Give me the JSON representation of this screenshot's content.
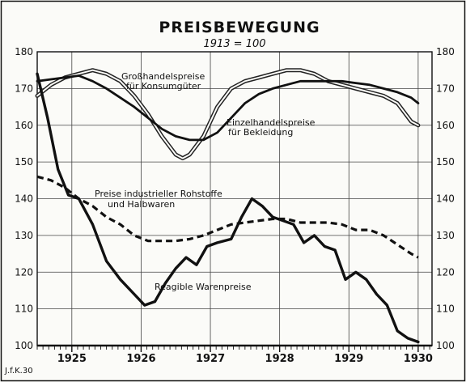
{
  "chart_data": {
    "type": "line",
    "title": "PREISBEWEGUNG",
    "subtitle": "1913 = 100",
    "credit": "J.f.K.30",
    "x_ticks": [
      "1925",
      "1926",
      "1927",
      "1928",
      "1929",
      "1930"
    ],
    "y_ticks": [
      100,
      110,
      120,
      130,
      140,
      150,
      160,
      170,
      180
    ],
    "xlim": [
      1924.5,
      1930.2
    ],
    "ylim": [
      100,
      180
    ],
    "grid": true,
    "legend": "none",
    "series": [
      {
        "name": "Großhandelspreise für Konsumgüter",
        "style": "double",
        "x": [
          1924.5,
          1924.7,
          1924.9,
          1925.1,
          1925.3,
          1925.5,
          1925.7,
          1925.9,
          1926.1,
          1926.3,
          1926.5,
          1926.6,
          1926.7,
          1926.9,
          1927.1,
          1927.3,
          1927.5,
          1927.7,
          1927.9,
          1928.1,
          1928.3,
          1928.5,
          1928.7,
          1928.9,
          1929.1,
          1929.3,
          1929.5,
          1929.7,
          1929.9,
          1930.0
        ],
        "y": [
          168,
          171,
          173,
          174,
          175,
          174,
          172,
          168,
          163,
          157,
          152,
          151,
          152,
          157,
          165,
          170,
          172,
          173,
          174,
          175,
          175,
          174,
          172,
          171,
          170,
          169,
          168,
          166,
          161,
          160
        ]
      },
      {
        "name": "Einzelhandelspreise für Bekleidung",
        "style": "solid",
        "x": [
          1924.5,
          1924.7,
          1924.9,
          1925.1,
          1925.3,
          1925.5,
          1925.7,
          1925.9,
          1926.1,
          1926.3,
          1926.5,
          1926.7,
          1926.9,
          1927.1,
          1927.3,
          1927.5,
          1927.7,
          1927.9,
          1928.1,
          1928.3,
          1928.5,
          1928.7,
          1928.9,
          1929.1,
          1929.3,
          1929.5,
          1929.7,
          1929.9,
          1930.0
        ],
        "y": [
          172,
          172.5,
          173,
          173.5,
          172,
          170,
          167.5,
          165,
          162,
          159,
          157,
          156,
          156,
          158,
          162,
          166,
          168.5,
          170,
          171,
          172,
          172,
          172,
          172,
          171.5,
          171,
          170,
          169,
          167.5,
          166
        ]
      },
      {
        "name": "Preise industrieller Rohstoffe und Halbwaren",
        "style": "dashed",
        "x": [
          1924.5,
          1924.7,
          1924.9,
          1925.1,
          1925.3,
          1925.5,
          1925.7,
          1925.9,
          1926.1,
          1926.3,
          1926.5,
          1926.7,
          1926.9,
          1927.1,
          1927.3,
          1927.5,
          1927.7,
          1927.9,
          1928.1,
          1928.3,
          1928.5,
          1928.7,
          1928.9,
          1929.1,
          1929.3,
          1929.5,
          1929.7,
          1929.9,
          1930.0
        ],
        "y": [
          146,
          145,
          143,
          140,
          138,
          135,
          133,
          130,
          128.5,
          128.5,
          128.5,
          129,
          130,
          131.5,
          133,
          133.5,
          134,
          134.5,
          134.5,
          133.5,
          133.5,
          133.5,
          133,
          131.5,
          131.5,
          130,
          127.5,
          125,
          124
        ]
      },
      {
        "name": "Reagible Warenpreise",
        "style": "solid-thick",
        "x": [
          1924.5,
          1924.65,
          1924.8,
          1924.95,
          1925.1,
          1925.3,
          1925.5,
          1925.7,
          1925.9,
          1926.05,
          1926.2,
          1926.35,
          1926.5,
          1926.65,
          1926.8,
          1926.95,
          1927.1,
          1927.3,
          1927.45,
          1927.6,
          1927.75,
          1927.9,
          1928.05,
          1928.2,
          1928.35,
          1928.5,
          1928.65,
          1928.8,
          1928.95,
          1929.1,
          1929.25,
          1929.4,
          1929.55,
          1929.7,
          1929.85,
          1930.0
        ],
        "y": [
          174,
          162,
          148,
          141,
          140,
          133,
          123,
          118,
          114,
          111,
          112,
          117,
          121,
          124,
          122,
          127,
          128,
          129,
          135,
          140,
          138,
          135,
          134,
          133,
          128,
          130,
          127,
          126,
          118,
          120,
          118,
          114,
          111,
          104,
          102,
          101
        ]
      }
    ],
    "annotations": [
      "Großhandelspreise",
      "für Konsumgüter",
      "Einzelhandelspreise",
      "für Bekleidung",
      "Preise industrieller Rohstoffe",
      "und Halbwaren",
      "Reagible Warenpreise"
    ]
  }
}
